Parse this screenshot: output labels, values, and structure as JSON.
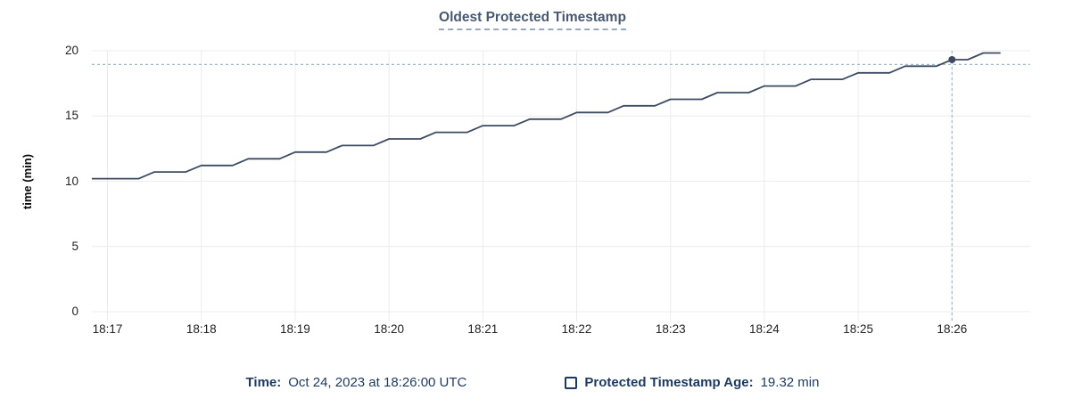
{
  "title": "Oldest Protected Timestamp",
  "footer": {
    "time_label": "Time:",
    "time_value": "Oct 24, 2023 at 18:26:00 UTC",
    "series_label": "Protected Timestamp Age:",
    "series_value": "19.32 min"
  },
  "colors": {
    "title_text": "#475970",
    "title_underline": "#98a9bd",
    "navy_text": "#1d3a5e",
    "line": "#3c4b62",
    "marker": "#3c4b62",
    "grid": "#ececec",
    "crosshair": "#a0b9c8",
    "axis_text": "#222222",
    "background": "#ffffff"
  },
  "chart_data": {
    "type": "line",
    "title": "Oldest Protected Timestamp",
    "xlabel": "",
    "ylabel": "time (min)",
    "ylim": [
      0,
      20
    ],
    "y_ticks": [
      0,
      5,
      10,
      15,
      20
    ],
    "x_domain_seconds": [
      0,
      600
    ],
    "x_ticks": [
      {
        "t": 10,
        "label": "18:17"
      },
      {
        "t": 70,
        "label": "18:18"
      },
      {
        "t": 130,
        "label": "18:19"
      },
      {
        "t": 190,
        "label": "18:20"
      },
      {
        "t": 250,
        "label": "18:21"
      },
      {
        "t": 310,
        "label": "18:22"
      },
      {
        "t": 370,
        "label": "18:23"
      },
      {
        "t": 430,
        "label": "18:24"
      },
      {
        "t": 490,
        "label": "18:25"
      },
      {
        "t": 550,
        "label": "18:26"
      }
    ],
    "grid": true,
    "legend_position": "bottom",
    "series": [
      {
        "name": "Protected Timestamp Age",
        "unit": "min",
        "points": [
          [
            0,
            10.2
          ],
          [
            30,
            10.2
          ],
          [
            40,
            10.71
          ],
          [
            60,
            10.71
          ],
          [
            70,
            11.21
          ],
          [
            90,
            11.21
          ],
          [
            100,
            11.72
          ],
          [
            120,
            11.72
          ],
          [
            130,
            12.23
          ],
          [
            150,
            12.23
          ],
          [
            160,
            12.74
          ],
          [
            180,
            12.74
          ],
          [
            190,
            13.24
          ],
          [
            210,
            13.24
          ],
          [
            220,
            13.75
          ],
          [
            240,
            13.75
          ],
          [
            250,
            14.26
          ],
          [
            270,
            14.26
          ],
          [
            280,
            14.76
          ],
          [
            300,
            14.76
          ],
          [
            310,
            15.27
          ],
          [
            330,
            15.27
          ],
          [
            340,
            15.78
          ],
          [
            360,
            15.78
          ],
          [
            370,
            16.28
          ],
          [
            390,
            16.28
          ],
          [
            400,
            16.79
          ],
          [
            420,
            16.79
          ],
          [
            430,
            17.3
          ],
          [
            450,
            17.3
          ],
          [
            460,
            17.81
          ],
          [
            480,
            17.81
          ],
          [
            490,
            18.31
          ],
          [
            510,
            18.31
          ],
          [
            520,
            18.82
          ],
          [
            540,
            18.82
          ],
          [
            550,
            19.32
          ],
          [
            560,
            19.32
          ],
          [
            570,
            19.83
          ],
          [
            581,
            19.83
          ]
        ]
      }
    ],
    "marker": {
      "t": 550,
      "value": 19.32,
      "time_label": "18:26:00"
    },
    "crosshair": {
      "vline_t": 550,
      "hline_value": 18.95
    }
  }
}
